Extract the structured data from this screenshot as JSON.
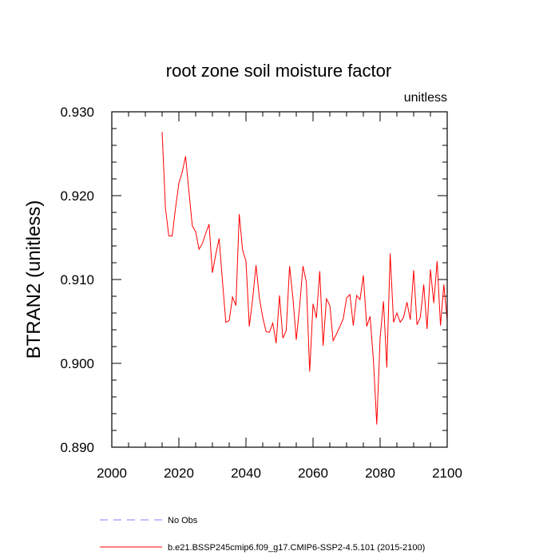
{
  "chart_data": {
    "type": "line",
    "title": "root zone soil moisture factor",
    "units_label": "unitless",
    "ylabel": "BTRAN2  (unitless)",
    "xlabel": "",
    "xlim": [
      2000,
      2100
    ],
    "ylim": [
      0.89,
      0.93
    ],
    "x_ticks": [
      2000,
      2020,
      2040,
      2060,
      2080,
      2100
    ],
    "x_tick_labels": [
      "2000",
      "2020",
      "2040",
      "2060",
      "2080",
      "2100"
    ],
    "y_ticks": [
      0.89,
      0.9,
      0.91,
      0.92,
      0.93
    ],
    "y_tick_labels": [
      "0.890",
      "0.900",
      "0.910",
      "0.920",
      "0.930"
    ],
    "legend": [
      {
        "label": "No Obs",
        "color": "#8080ff",
        "style": "dashed"
      },
      {
        "label": "b.e21.BSSP245cmip6.f09_g17.CMIP6-SSP2-4.5.101 (2015-2100)",
        "color": "#ff0000",
        "style": "solid"
      }
    ],
    "series": [
      {
        "name": "b.e21.BSSP245cmip6.f09_g17.CMIP6-SSP2-4.5.101 (2015-2100)",
        "color": "#ff0000",
        "x": [
          2015,
          2016,
          2017,
          2018,
          2019,
          2020,
          2021,
          2022,
          2023,
          2024,
          2025,
          2026,
          2027,
          2028,
          2029,
          2030,
          2031,
          2032,
          2033,
          2034,
          2035,
          2036,
          2037,
          2038,
          2039,
          2040,
          2041,
          2042,
          2043,
          2044,
          2045,
          2046,
          2047,
          2048,
          2049,
          2050,
          2051,
          2052,
          2053,
          2054,
          2055,
          2056,
          2057,
          2058,
          2059,
          2060,
          2061,
          2062,
          2063,
          2064,
          2065,
          2066,
          2067,
          2068,
          2069,
          2070,
          2071,
          2072,
          2073,
          2074,
          2075,
          2076,
          2077,
          2078,
          2079,
          2080,
          2081,
          2082,
          2083,
          2084,
          2085,
          2086,
          2087,
          2088,
          2089,
          2090,
          2091,
          2092,
          2093,
          2094,
          2095,
          2096,
          2097,
          2098,
          2099,
          2100
        ],
        "values": [
          0.9276,
          0.9185,
          0.9152,
          0.9152,
          0.9185,
          0.9215,
          0.9228,
          0.9247,
          0.9205,
          0.9164,
          0.9157,
          0.9136,
          0.9143,
          0.9155,
          0.9166,
          0.9108,
          0.913,
          0.9149,
          0.9098,
          0.9049,
          0.9051,
          0.9079,
          0.9069,
          0.9178,
          0.9135,
          0.9122,
          0.9044,
          0.9077,
          0.9117,
          0.9078,
          0.9055,
          0.9038,
          0.9037,
          0.9048,
          0.9024,
          0.9081,
          0.903,
          0.9039,
          0.9116,
          0.9078,
          0.9028,
          0.9068,
          0.9116,
          0.9097,
          0.899,
          0.9071,
          0.9054,
          0.911,
          0.9021,
          0.9077,
          0.9069,
          0.9027,
          0.9035,
          0.9044,
          0.9053,
          0.9078,
          0.9082,
          0.9045,
          0.9081,
          0.9076,
          0.9105,
          0.9044,
          0.9056,
          0.9004,
          0.8927,
          0.903,
          0.9074,
          0.8995,
          0.9131,
          0.9049,
          0.906,
          0.9049,
          0.9055,
          0.9073,
          0.9052,
          0.9111,
          0.9046,
          0.9055,
          0.9094,
          0.9041,
          0.9112,
          0.9072,
          0.9122,
          0.9045,
          0.9094,
          0.9051
        ]
      }
    ]
  }
}
